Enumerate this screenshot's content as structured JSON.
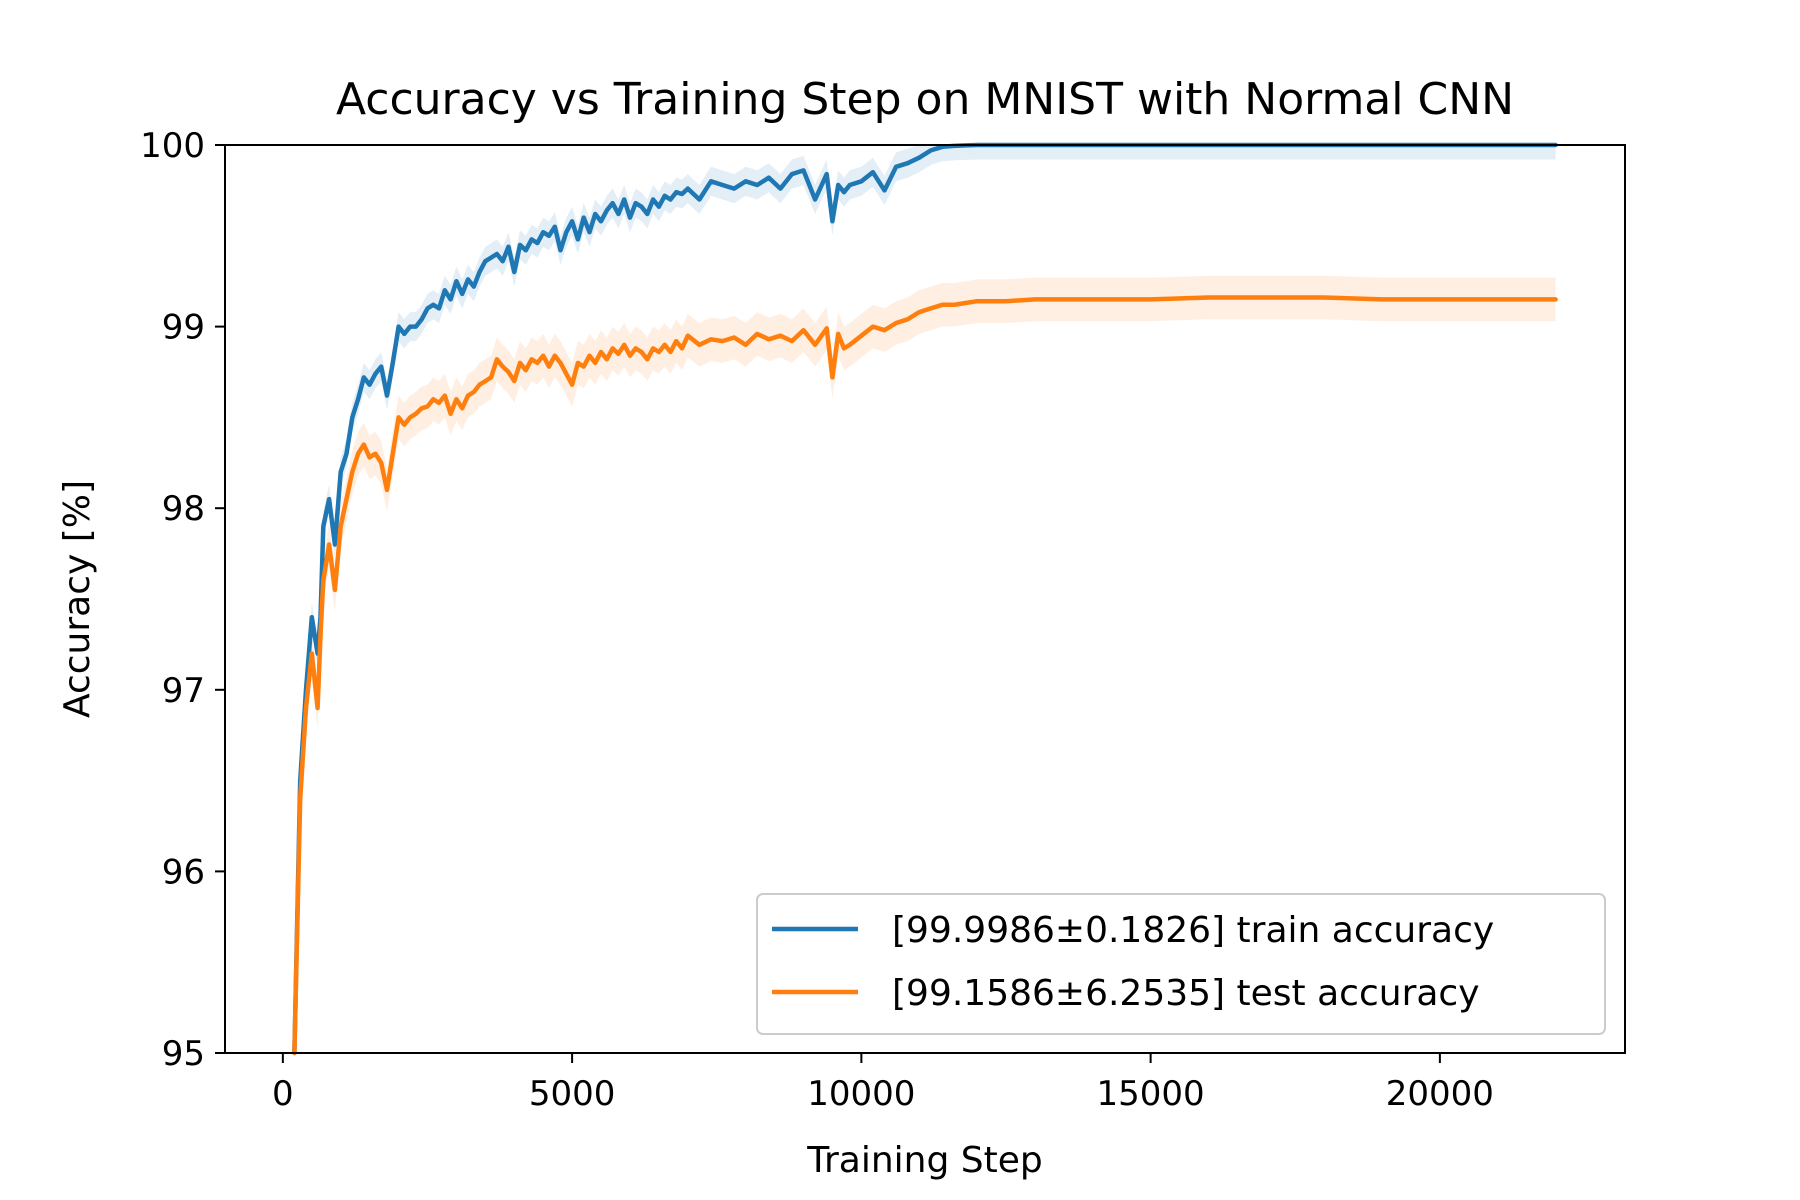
{
  "chart_data": {
    "type": "line",
    "title": "Accuracy vs Training Step on MNIST with Normal CNN",
    "xlabel": "Training Step",
    "ylabel": "Accuracy [%]",
    "xlim": [
      -1000,
      23200
    ],
    "ylim": [
      95,
      100
    ],
    "xticks": [
      0,
      5000,
      10000,
      15000,
      20000
    ],
    "xtick_labels": [
      "0",
      "5000",
      "10000",
      "15000",
      "20000"
    ],
    "yticks": [
      95,
      96,
      97,
      98,
      99,
      100
    ],
    "ytick_labels": [
      "95",
      "96",
      "97",
      "98",
      "99",
      "100"
    ],
    "grid": false,
    "legend_position": "lower-right",
    "colors": {
      "train": "#1f77b4",
      "test": "#ff7f0e"
    },
    "series": [
      {
        "name": "[99.9986±0.1826] train accuracy",
        "color": "#1f77b4",
        "band": 0.08,
        "x": [
          200,
          300,
          400,
          500,
          600,
          650,
          700,
          800,
          900,
          1000,
          1100,
          1200,
          1300,
          1400,
          1500,
          1600,
          1700,
          1800,
          1900,
          2000,
          2100,
          2200,
          2300,
          2400,
          2500,
          2600,
          2700,
          2800,
          2900,
          3000,
          3100,
          3200,
          3300,
          3400,
          3500,
          3600,
          3700,
          3800,
          3900,
          4000,
          4100,
          4200,
          4300,
          4400,
          4500,
          4600,
          4700,
          4800,
          4900,
          5000,
          5100,
          5200,
          5300,
          5400,
          5500,
          5600,
          5700,
          5800,
          5900,
          6000,
          6100,
          6200,
          6300,
          6400,
          6500,
          6600,
          6700,
          6800,
          6900,
          7000,
          7200,
          7400,
          7600,
          7800,
          8000,
          8200,
          8400,
          8600,
          8800,
          9000,
          9200,
          9400,
          9500,
          9600,
          9700,
          9800,
          10000,
          10200,
          10400,
          10600,
          10800,
          11000,
          11200,
          11400,
          11600,
          11800,
          12000,
          12500,
          13000,
          14000,
          15000,
          16000,
          17000,
          18000,
          19000,
          20000,
          21000,
          22000
        ],
        "y": [
          95.0,
          96.5,
          97.0,
          97.4,
          97.2,
          97.4,
          97.9,
          98.05,
          97.8,
          98.2,
          98.3,
          98.5,
          98.6,
          98.72,
          98.68,
          98.74,
          98.78,
          98.62,
          98.8,
          99.0,
          98.96,
          99.0,
          99.0,
          99.04,
          99.1,
          99.12,
          99.1,
          99.2,
          99.15,
          99.25,
          99.18,
          99.26,
          99.22,
          99.3,
          99.36,
          99.38,
          99.4,
          99.36,
          99.44,
          99.3,
          99.45,
          99.42,
          99.48,
          99.46,
          99.52,
          99.5,
          99.55,
          99.42,
          99.52,
          99.58,
          99.48,
          99.6,
          99.52,
          99.62,
          99.58,
          99.64,
          99.68,
          99.62,
          99.7,
          99.6,
          99.68,
          99.66,
          99.62,
          99.7,
          99.66,
          99.72,
          99.7,
          99.74,
          99.73,
          99.76,
          99.7,
          99.8,
          99.78,
          99.76,
          99.8,
          99.78,
          99.82,
          99.76,
          99.84,
          99.86,
          99.7,
          99.84,
          99.58,
          99.78,
          99.74,
          99.78,
          99.8,
          99.85,
          99.75,
          99.88,
          99.9,
          99.93,
          99.97,
          99.99,
          99.995,
          99.998,
          100.0,
          100.0,
          100.0,
          100.0,
          100.0,
          100.0,
          100.0,
          100.0,
          100.0,
          100.0,
          100.0,
          100.0
        ]
      },
      {
        "name": "[99.1586±6.2535] test accuracy",
        "color": "#ff7f0e",
        "band": 0.12,
        "x": [
          200,
          300,
          400,
          500,
          600,
          650,
          700,
          800,
          900,
          1000,
          1100,
          1200,
          1300,
          1400,
          1500,
          1600,
          1700,
          1800,
          1900,
          2000,
          2100,
          2200,
          2300,
          2400,
          2500,
          2600,
          2700,
          2800,
          2900,
          3000,
          3100,
          3200,
          3300,
          3400,
          3500,
          3600,
          3700,
          3800,
          3900,
          4000,
          4100,
          4200,
          4300,
          4400,
          4500,
          4600,
          4700,
          4800,
          4900,
          5000,
          5100,
          5200,
          5300,
          5400,
          5500,
          5600,
          5700,
          5800,
          5900,
          6000,
          6100,
          6200,
          6300,
          6400,
          6500,
          6600,
          6700,
          6800,
          6900,
          7000,
          7200,
          7400,
          7600,
          7800,
          8000,
          8200,
          8400,
          8600,
          8800,
          9000,
          9200,
          9400,
          9500,
          9600,
          9700,
          9800,
          10000,
          10200,
          10400,
          10600,
          10800,
          11000,
          11200,
          11400,
          11600,
          11800,
          12000,
          12500,
          13000,
          14000,
          15000,
          16000,
          17000,
          18000,
          19000,
          20000,
          21000,
          22000
        ],
        "y": [
          95.0,
          96.4,
          96.9,
          97.2,
          96.9,
          97.3,
          97.6,
          97.8,
          97.55,
          97.9,
          98.05,
          98.2,
          98.3,
          98.35,
          98.28,
          98.3,
          98.25,
          98.1,
          98.3,
          98.5,
          98.46,
          98.5,
          98.52,
          98.55,
          98.56,
          98.6,
          98.58,
          98.62,
          98.52,
          98.6,
          98.55,
          98.62,
          98.64,
          98.68,
          98.7,
          98.72,
          98.82,
          98.78,
          98.75,
          98.7,
          98.8,
          98.76,
          98.82,
          98.8,
          98.84,
          98.78,
          98.84,
          98.8,
          98.74,
          98.68,
          98.8,
          98.78,
          98.84,
          98.8,
          98.86,
          98.82,
          98.88,
          98.85,
          98.9,
          98.84,
          98.88,
          98.86,
          98.82,
          98.88,
          98.86,
          98.9,
          98.86,
          98.92,
          98.88,
          98.95,
          98.9,
          98.93,
          98.92,
          98.94,
          98.9,
          98.96,
          98.93,
          98.95,
          98.92,
          98.98,
          98.9,
          98.99,
          98.72,
          98.96,
          98.88,
          98.9,
          98.95,
          99.0,
          98.98,
          99.02,
          99.04,
          99.08,
          99.1,
          99.12,
          99.12,
          99.13,
          99.14,
          99.14,
          99.15,
          99.15,
          99.15,
          99.16,
          99.16,
          99.16,
          99.15,
          99.15,
          99.15,
          99.15
        ]
      }
    ]
  }
}
